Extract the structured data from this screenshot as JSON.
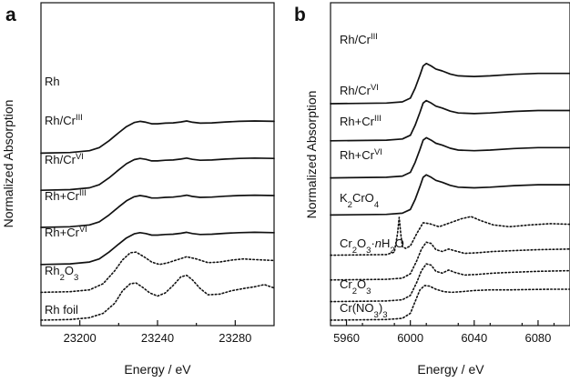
{
  "chart_data": [
    {
      "panel": "a",
      "type": "line",
      "xlabel": "Energy / eV",
      "ylabel": "Normalized Absorption",
      "xlim": [
        23180,
        23300
      ],
      "xticks": [
        23200,
        23240,
        23280
      ],
      "series": [
        {
          "name": "Rh",
          "base": "Rh",
          "sup": "",
          "sub": "",
          "style": "solid",
          "offset": 5.4,
          "amp": 1.0,
          "x": [
            23180,
            23195,
            23205,
            23210,
            23215,
            23220,
            23224,
            23228,
            23231,
            23234,
            23237,
            23240,
            23244,
            23248,
            23252,
            23255,
            23258,
            23262,
            23268,
            23275,
            23282,
            23290,
            23300
          ],
          "y": [
            0.0,
            0.02,
            0.08,
            0.18,
            0.4,
            0.66,
            0.86,
            0.99,
            1.03,
            1.0,
            0.95,
            0.95,
            0.97,
            0.98,
            1.01,
            1.04,
            1.0,
            0.97,
            0.98,
            1.01,
            1.03,
            1.04,
            1.03
          ]
        },
        {
          "name": "Rh/CrIII",
          "base": "Rh/Cr",
          "sup": "III",
          "sub": "",
          "style": "solid",
          "offset": 4.2,
          "amp": 1.0,
          "x": [
            23180,
            23195,
            23205,
            23210,
            23215,
            23220,
            23224,
            23228,
            23231,
            23234,
            23237,
            23240,
            23244,
            23248,
            23252,
            23255,
            23258,
            23262,
            23268,
            23275,
            23282,
            23290,
            23300
          ],
          "y": [
            0.0,
            0.02,
            0.08,
            0.18,
            0.4,
            0.66,
            0.86,
            0.99,
            1.03,
            1.0,
            0.95,
            0.95,
            0.97,
            0.98,
            1.01,
            1.04,
            1.0,
            0.97,
            0.98,
            1.01,
            1.03,
            1.04,
            1.03
          ]
        },
        {
          "name": "Rh/CrVI",
          "base": "Rh/Cr",
          "sup": "VI",
          "sub": "",
          "style": "solid",
          "offset": 3.0,
          "amp": 1.0,
          "x": [
            23180,
            23195,
            23205,
            23210,
            23215,
            23220,
            23224,
            23228,
            23231,
            23234,
            23237,
            23240,
            23244,
            23248,
            23252,
            23255,
            23258,
            23262,
            23268,
            23275,
            23282,
            23290,
            23300
          ],
          "y": [
            0.0,
            0.02,
            0.08,
            0.18,
            0.4,
            0.66,
            0.86,
            0.99,
            1.03,
            1.0,
            0.95,
            0.95,
            0.97,
            0.98,
            1.01,
            1.04,
            1.0,
            0.97,
            0.98,
            1.01,
            1.03,
            1.04,
            1.03
          ]
        },
        {
          "name": "Rh+CrIII",
          "base": "Rh+Cr",
          "sup": "III",
          "sub": "",
          "style": "solid",
          "offset": 1.8,
          "amp": 1.0,
          "x": [
            23180,
            23195,
            23205,
            23210,
            23215,
            23220,
            23224,
            23228,
            23231,
            23234,
            23237,
            23240,
            23244,
            23248,
            23252,
            23255,
            23258,
            23262,
            23268,
            23275,
            23282,
            23290,
            23300
          ],
          "y": [
            0.0,
            0.02,
            0.08,
            0.18,
            0.4,
            0.66,
            0.86,
            0.99,
            1.03,
            1.0,
            0.95,
            0.95,
            0.97,
            0.98,
            1.01,
            1.04,
            1.0,
            0.97,
            0.98,
            1.01,
            1.03,
            1.04,
            1.03
          ]
        },
        {
          "name": "Rh+CrVI",
          "base": "Rh+Cr",
          "sup": "VI",
          "sub": "",
          "style": "dotted",
          "offset": 0.9,
          "amp": 1.0,
          "x": [
            23180,
            23195,
            23205,
            23212,
            23218,
            23222,
            23226,
            23229,
            23233,
            23237,
            23241,
            23245,
            23250,
            23255,
            23260,
            23266,
            23272,
            23278,
            23284,
            23290,
            23300
          ],
          "y": [
            0.0,
            0.02,
            0.08,
            0.28,
            0.7,
            1.05,
            1.28,
            1.3,
            1.15,
            0.98,
            0.9,
            0.95,
            1.05,
            1.15,
            1.08,
            0.96,
            0.98,
            1.04,
            1.08,
            1.06,
            1.03
          ]
        },
        {
          "name": "Rh2O3",
          "base": "Rh",
          "sup": "",
          "sub": "2",
          "tail": "O",
          "sub2": "3",
          "style": "dotted",
          "offset": 0.0,
          "amp": 1.0,
          "x": [
            23180,
            23195,
            23205,
            23212,
            23218,
            23222,
            23226,
            23229,
            23232,
            23236,
            23240,
            23244,
            23248,
            23252,
            23255,
            23258,
            23262,
            23266,
            23272,
            23278,
            23284,
            23290,
            23295,
            23300
          ],
          "y": [
            0.0,
            0.02,
            0.08,
            0.22,
            0.55,
            0.95,
            1.18,
            1.2,
            1.08,
            0.88,
            0.78,
            0.88,
            1.12,
            1.4,
            1.45,
            1.3,
            1.02,
            0.82,
            0.84,
            0.95,
            1.02,
            1.08,
            1.15,
            1.04
          ]
        }
      ],
      "extra_labels": [
        {
          "text": "Rh foil"
        }
      ]
    },
    {
      "panel": "b",
      "type": "line",
      "xlabel": "Energy / eV",
      "ylabel": "Normalized Absorption",
      "xlim": [
        5950,
        6100
      ],
      "xticks": [
        5960,
        6000,
        6040,
        6080
      ],
      "series": [
        {
          "name": "Rh/CrIII",
          "base": "Rh/Cr",
          "sup": "III",
          "sub": "",
          "style": "solid",
          "offset": 7.0,
          "amp": 1.0,
          "x": [
            5950,
            5985,
            5995,
            6000,
            6003,
            6006,
            6008,
            6010,
            6013,
            6016,
            6020,
            6025,
            6030,
            6040,
            6050,
            6065,
            6080,
            6100
          ],
          "y": [
            0.0,
            0.02,
            0.06,
            0.18,
            0.5,
            0.92,
            1.22,
            1.3,
            1.22,
            1.12,
            1.06,
            0.96,
            0.9,
            0.88,
            0.9,
            0.95,
            0.98,
            0.98
          ]
        },
        {
          "name": "Rh/CrVI",
          "base": "Rh/Cr",
          "sup": "VI",
          "sub": "",
          "style": "solid",
          "offset": 5.8,
          "amp": 1.0,
          "x": [
            5950,
            5985,
            5995,
            6000,
            6003,
            6006,
            6008,
            6010,
            6013,
            6016,
            6020,
            6025,
            6030,
            6040,
            6050,
            6065,
            6080,
            6100
          ],
          "y": [
            0.0,
            0.02,
            0.06,
            0.18,
            0.5,
            0.92,
            1.22,
            1.3,
            1.22,
            1.12,
            1.06,
            0.96,
            0.9,
            0.88,
            0.9,
            0.95,
            0.98,
            0.98
          ]
        },
        {
          "name": "Rh+CrIII",
          "base": "Rh+Cr",
          "sup": "III",
          "sub": "",
          "style": "solid",
          "offset": 4.6,
          "amp": 1.0,
          "x": [
            5950,
            5985,
            5995,
            6000,
            6003,
            6006,
            6008,
            6010,
            6013,
            6016,
            6020,
            6025,
            6030,
            6040,
            6050,
            6065,
            6080,
            6100
          ],
          "y": [
            0.0,
            0.02,
            0.06,
            0.18,
            0.5,
            0.92,
            1.22,
            1.3,
            1.22,
            1.12,
            1.06,
            0.96,
            0.9,
            0.88,
            0.9,
            0.95,
            0.98,
            0.98
          ]
        },
        {
          "name": "Rh+CrVI",
          "base": "Rh+Cr",
          "sup": "VI",
          "sub": "",
          "style": "solid",
          "offset": 3.4,
          "amp": 1.0,
          "x": [
            5950,
            5985,
            5995,
            6000,
            6003,
            6006,
            6008,
            6010,
            6013,
            6016,
            6020,
            6025,
            6030,
            6040,
            6050,
            6065,
            6080,
            6100
          ],
          "y": [
            0.0,
            0.02,
            0.06,
            0.18,
            0.5,
            0.92,
            1.22,
            1.3,
            1.22,
            1.12,
            1.06,
            0.96,
            0.9,
            0.88,
            0.9,
            0.95,
            0.98,
            0.98
          ]
        },
        {
          "name": "K2CrO4",
          "base": "K",
          "sup": "",
          "sub": "2",
          "tail": "CrO",
          "sub2": "4",
          "style": "dotted",
          "offset": 2.1,
          "amp": 1.0,
          "x": [
            5950,
            5985,
            5990,
            5992,
            5993,
            5994,
            5995,
            5997,
            6000,
            6004,
            6008,
            6012,
            6018,
            6025,
            6032,
            6038,
            6044,
            6052,
            6062,
            6075,
            6088,
            6100
          ],
          "y": [
            0.0,
            0.02,
            0.1,
            0.7,
            1.22,
            0.7,
            0.28,
            0.22,
            0.3,
            0.7,
            1.05,
            1.02,
            0.92,
            1.05,
            1.18,
            1.25,
            1.12,
            0.98,
            0.92,
            0.98,
            1.02,
            1.0
          ]
        },
        {
          "name": "Cr2O3·nH2O",
          "base": "Cr",
          "sup": "",
          "sub": "2",
          "tail": "O",
          "sub2": "3",
          "tail2": "·nH",
          "sub3": "2",
          "tail3": "O",
          "style": "dotted",
          "offset": 1.3,
          "amp": 1.0,
          "x": [
            5950,
            5985,
            5995,
            6000,
            6004,
            6007,
            6010,
            6013,
            6016,
            6020,
            6024,
            6028,
            6034,
            6042,
            6052,
            6065,
            6080,
            6100
          ],
          "y": [
            0.0,
            0.02,
            0.06,
            0.2,
            0.62,
            1.0,
            1.22,
            1.18,
            0.98,
            0.92,
            1.0,
            0.94,
            0.86,
            0.88,
            0.92,
            0.95,
            0.98,
            1.0
          ]
        },
        {
          "name": "Cr2O3",
          "base": "Cr",
          "sup": "",
          "sub": "2",
          "tail": "O",
          "sub2": "3",
          "style": "dotted",
          "offset": 0.6,
          "amp": 1.0,
          "x": [
            5950,
            5985,
            5995,
            6000,
            6004,
            6007,
            6010,
            6013,
            6016,
            6020,
            6024,
            6028,
            6034,
            6042,
            6052,
            6065,
            6080,
            6100
          ],
          "y": [
            0.0,
            0.02,
            0.06,
            0.2,
            0.62,
            1.0,
            1.22,
            1.18,
            0.98,
            0.92,
            1.02,
            0.94,
            0.86,
            0.88,
            0.92,
            0.95,
            0.98,
            1.0
          ]
        },
        {
          "name": "Cr(NO3)3",
          "base": "Cr(NO",
          "sup": "",
          "sub": "3",
          "tail": ")",
          "sub2": "3",
          "style": "dotted",
          "offset": 0.0,
          "amp": 1.0,
          "x": [
            5950,
            5985,
            5995,
            6000,
            6003,
            6006,
            6009,
            6012,
            6016,
            6021,
            6026,
            6032,
            6040,
            6050,
            6062,
            6075,
            6088,
            6100
          ],
          "y": [
            0.0,
            0.02,
            0.06,
            0.22,
            0.6,
            0.98,
            1.12,
            1.1,
            1.0,
            0.92,
            0.9,
            0.92,
            0.96,
            0.98,
            0.98,
            0.99,
            1.0,
            1.0
          ]
        }
      ]
    }
  ]
}
